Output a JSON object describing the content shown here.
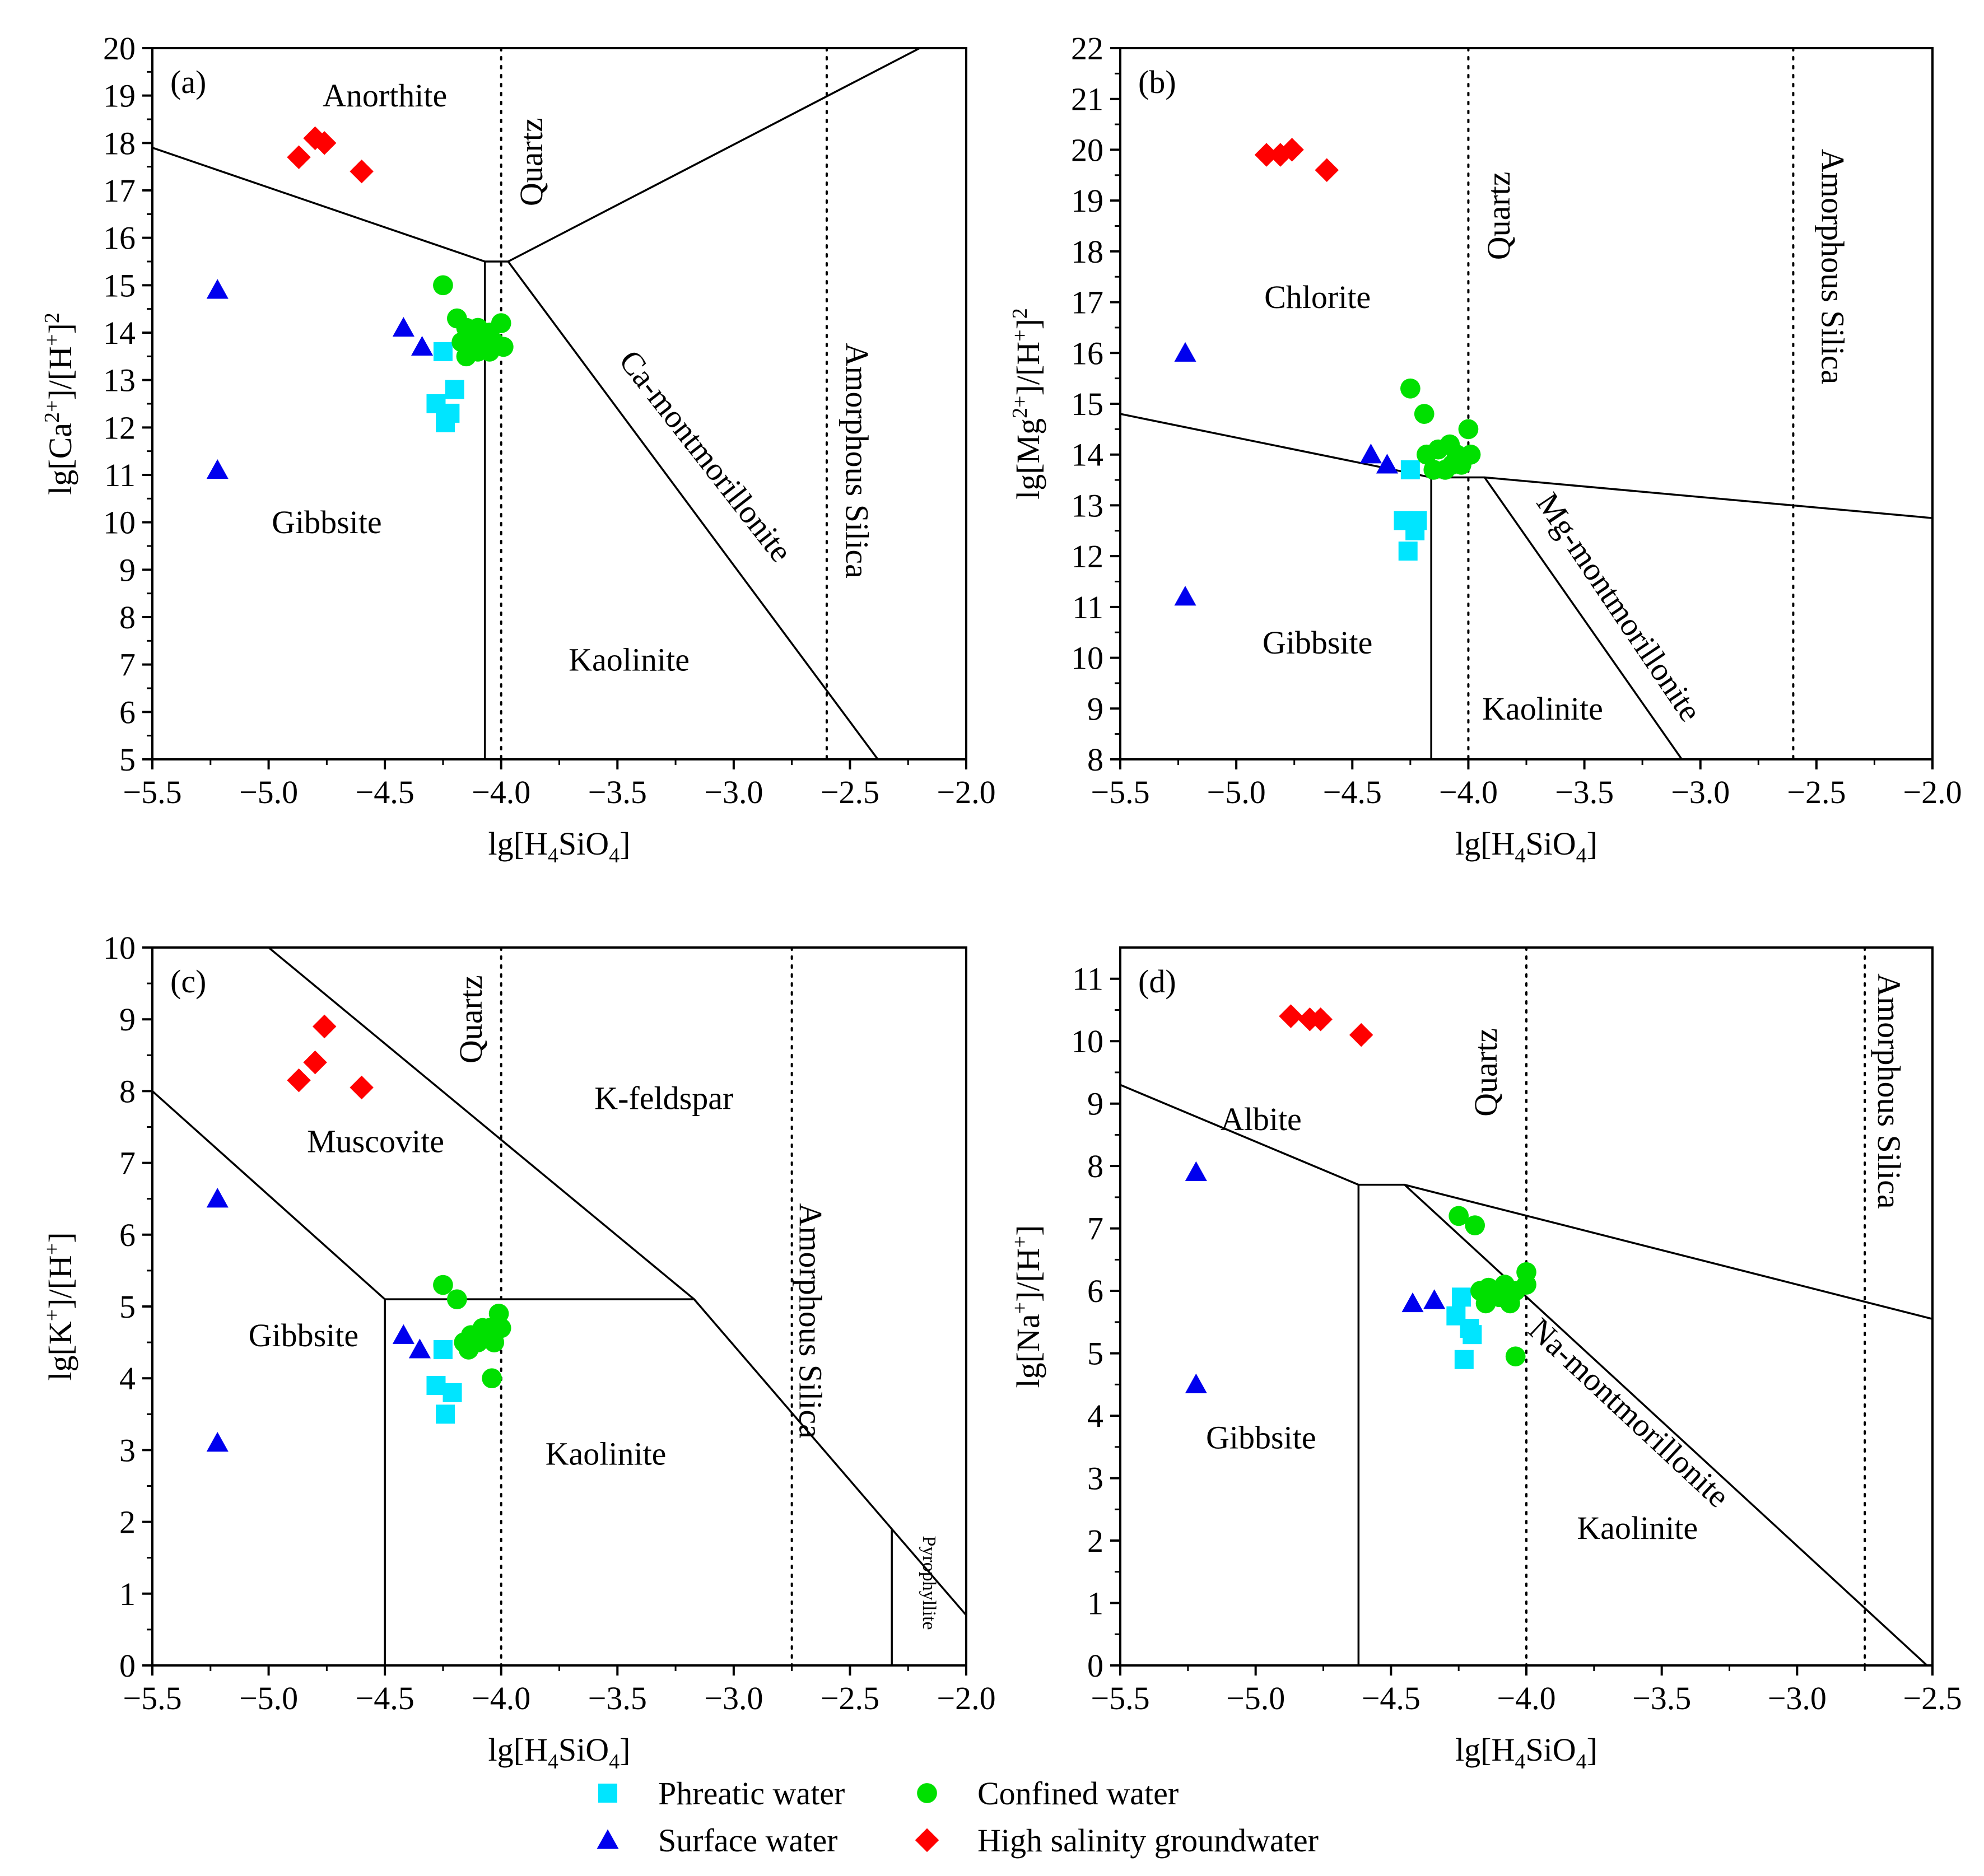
{
  "chart_data": [
    {
      "type": "scatter",
      "tag": "(a)",
      "xlabel": {
        "base": "lg[H",
        "sub1": "4",
        "mid": "SiO",
        "sub2": "4",
        "end": "]"
      },
      "ylabel": {
        "base": "lg[Ca",
        "sup1": "2+",
        "mid": "]/[H",
        "sup2": "+",
        "end": "]",
        "sup3": "2"
      },
      "xlim": [
        -5.5,
        -2.0
      ],
      "ylim": [
        5,
        20
      ],
      "xticks": [
        -5.5,
        -5.0,
        -4.5,
        -4.0,
        -3.5,
        -3.0,
        -2.5,
        -2.0
      ],
      "xtick_labels": [
        "−5.5",
        "−5.0",
        "−4.5",
        "−4.0",
        "−3.5",
        "−3.0",
        "−2.5",
        "−2.0"
      ],
      "yticks": [
        5,
        6,
        7,
        8,
        9,
        10,
        11,
        12,
        13,
        14,
        15,
        16,
        17,
        18,
        19,
        20
      ],
      "ytick_labels": [
        "5",
        "6",
        "7",
        "8",
        "9",
        "10",
        "11",
        "12",
        "13",
        "14",
        "15",
        "16",
        "17",
        "18",
        "19",
        "20"
      ],
      "boundaries": [
        [
          [
            -5.5,
            17.9
          ],
          [
            -4.07,
            15.5
          ],
          [
            -3.97,
            15.5
          ],
          [
            -2.2,
            20.0
          ]
        ],
        [
          [
            -4.07,
            5.0
          ],
          [
            -4.07,
            15.5
          ]
        ],
        [
          [
            -3.97,
            15.5
          ],
          [
            -2.38,
            5.0
          ]
        ]
      ],
      "dotted_lines": [
        -4.0,
        -2.6
      ],
      "regions": [
        {
          "text": "Anorthite",
          "x": -4.5,
          "y": 19.0,
          "rotate": 0
        },
        {
          "text": "Gibbsite",
          "x": -4.75,
          "y": 10.0,
          "rotate": 0
        },
        {
          "text": "Kaolinite",
          "x": -3.45,
          "y": 7.1,
          "rotate": 0
        },
        {
          "text": "Ca-montmorillonite",
          "x": -3.12,
          "y": 11.4,
          "rotate": 52
        },
        {
          "text": "Amorphous Silica",
          "x": -2.47,
          "y": 11.3,
          "rotate": 90
        },
        {
          "text": "Quartz",
          "x": -3.87,
          "y": 17.6,
          "rotate": -90
        }
      ],
      "series": [
        {
          "key": "phreatic",
          "points": [
            [
              -4.25,
              13.6
            ],
            [
              -4.2,
              12.8
            ],
            [
              -4.28,
              12.5
            ],
            [
              -4.22,
              12.3
            ],
            [
              -4.24,
              12.1
            ]
          ]
        },
        {
          "key": "confined",
          "points": [
            [
              -4.25,
              15.0
            ],
            [
              -4.19,
              14.3
            ],
            [
              -4.15,
              14.1
            ],
            [
              -4.1,
              14.1
            ],
            [
              -4.05,
              14.0
            ],
            [
              -4.0,
              14.2
            ],
            [
              -4.13,
              13.9
            ],
            [
              -4.17,
              13.8
            ],
            [
              -4.07,
              13.8
            ],
            [
              -4.03,
              13.8
            ],
            [
              -3.99,
              13.7
            ],
            [
              -4.1,
              13.6
            ],
            [
              -4.05,
              13.6
            ],
            [
              -4.15,
              13.5
            ]
          ]
        },
        {
          "key": "surface",
          "points": [
            [
              -5.22,
              14.9
            ],
            [
              -4.42,
              14.1
            ],
            [
              -4.34,
              13.7
            ],
            [
              -5.22,
              11.1
            ]
          ]
        },
        {
          "key": "high",
          "points": [
            [
              -4.87,
              17.7
            ],
            [
              -4.8,
              18.1
            ],
            [
              -4.76,
              18.0
            ],
            [
              -4.6,
              17.4
            ]
          ]
        }
      ]
    },
    {
      "type": "scatter",
      "tag": "(b)",
      "xlabel": {
        "base": "lg[H",
        "sub1": "4",
        "mid": "SiO",
        "sub2": "4",
        "end": "]"
      },
      "ylabel": {
        "base": "lg[Mg",
        "sup1": "2+",
        "mid": "]/[H",
        "sup2": "+",
        "end": "]",
        "sup3": "2"
      },
      "xlim": [
        -5.5,
        -2.0
      ],
      "ylim": [
        8,
        22
      ],
      "xticks": [
        -5.5,
        -5.0,
        -4.5,
        -4.0,
        -3.5,
        -3.0,
        -2.5,
        -2.0
      ],
      "xtick_labels": [
        "−5.5",
        "−5.0",
        "−4.5",
        "−4.0",
        "−3.5",
        "−3.0",
        "−2.5",
        "−2.0"
      ],
      "yticks": [
        8,
        9,
        10,
        11,
        12,
        13,
        14,
        15,
        16,
        17,
        18,
        19,
        20,
        21,
        22
      ],
      "ytick_labels": [
        "8",
        "9",
        "10",
        "11",
        "12",
        "13",
        "14",
        "15",
        "16",
        "17",
        "18",
        "19",
        "20",
        "21",
        "22"
      ],
      "boundaries": [
        [
          [
            -5.5,
            14.8
          ],
          [
            -4.16,
            13.55
          ],
          [
            -3.93,
            13.55
          ],
          [
            -2.0,
            12.75
          ]
        ],
        [
          [
            -4.16,
            8.0
          ],
          [
            -4.16,
            13.55
          ]
        ],
        [
          [
            -3.93,
            13.55
          ],
          [
            -3.08,
            8.0
          ]
        ]
      ],
      "dotted_lines": [
        -4.0,
        -2.6
      ],
      "regions": [
        {
          "text": "Chlorite",
          "x": -4.65,
          "y": 17.1,
          "rotate": 0
        },
        {
          "text": "Gibbsite",
          "x": -4.65,
          "y": 10.3,
          "rotate": 0
        },
        {
          "text": "Kaolinite",
          "x": -3.68,
          "y": 9.0,
          "rotate": 0
        },
        {
          "text": "Mg-montmorillonite",
          "x": -3.35,
          "y": 11.0,
          "rotate": 56
        },
        {
          "text": "Amorphous Silica",
          "x": -2.43,
          "y": 17.7,
          "rotate": 90
        },
        {
          "text": "Quartz",
          "x": -3.87,
          "y": 18.7,
          "rotate": -90
        }
      ],
      "series": [
        {
          "key": "phreatic",
          "points": [
            [
              -4.25,
              13.7
            ],
            [
              -4.28,
              12.7
            ],
            [
              -4.22,
              12.7
            ],
            [
              -4.23,
              12.5
            ],
            [
              -4.26,
              12.1
            ]
          ]
        },
        {
          "key": "confined",
          "points": [
            [
              -4.25,
              15.3
            ],
            [
              -4.19,
              14.8
            ],
            [
              -4.18,
              14.0
            ],
            [
              -4.13,
              14.1
            ],
            [
              -4.08,
              14.2
            ],
            [
              -4.05,
              14.0
            ],
            [
              -4.0,
              14.5
            ],
            [
              -4.15,
              13.7
            ],
            [
              -4.1,
              13.7
            ],
            [
              -4.03,
              13.8
            ],
            [
              -3.99,
              14.0
            ],
            [
              -4.07,
              13.8
            ]
          ]
        },
        {
          "key": "surface",
          "points": [
            [
              -5.22,
              16.0
            ],
            [
              -4.42,
              14.0
            ],
            [
              -4.35,
              13.8
            ],
            [
              -5.22,
              11.2
            ]
          ]
        },
        {
          "key": "high",
          "points": [
            [
              -4.87,
              19.9
            ],
            [
              -4.81,
              19.9
            ],
            [
              -4.76,
              20.0
            ],
            [
              -4.61,
              19.6
            ]
          ]
        }
      ]
    },
    {
      "type": "scatter",
      "tag": "(c)",
      "xlabel": {
        "base": "lg[H",
        "sub1": "4",
        "mid": "SiO",
        "sub2": "4",
        "end": "]"
      },
      "ylabel": {
        "base": "lg[K",
        "sup1": "+",
        "mid": "]/[H",
        "sup2": "+",
        "end": "]",
        "sup3": ""
      },
      "xlim": [
        -5.5,
        -2.0
      ],
      "ylim": [
        0,
        10
      ],
      "xticks": [
        -5.5,
        -5.0,
        -4.5,
        -4.0,
        -3.5,
        -3.0,
        -2.5,
        -2.0
      ],
      "xtick_labels": [
        "−5.5",
        "−5.0",
        "−4.5",
        "−4.0",
        "−3.5",
        "−3.0",
        "−2.5",
        "−2.0"
      ],
      "yticks": [
        0,
        1,
        2,
        3,
        4,
        5,
        6,
        7,
        8,
        9,
        10
      ],
      "ytick_labels": [
        "0",
        "1",
        "2",
        "3",
        "4",
        "5",
        "6",
        "7",
        "8",
        "9",
        "10"
      ],
      "boundaries": [
        [
          [
            -5.5,
            8.0
          ],
          [
            -4.5,
            5.1
          ],
          [
            -3.17,
            5.1
          ]
        ],
        [
          [
            -4.5,
            0.0
          ],
          [
            -4.5,
            5.1
          ]
        ],
        [
          [
            -5.0,
            10.0
          ],
          [
            -3.17,
            5.1
          ],
          [
            -2.32,
            1.9
          ],
          [
            -2.0,
            0.7
          ]
        ],
        [
          [
            -2.32,
            0.0
          ],
          [
            -2.32,
            1.9
          ]
        ]
      ],
      "dotted_lines": [
        -4.0,
        -2.75
      ],
      "regions": [
        {
          "text": "K-feldspar",
          "x": -3.3,
          "y": 7.9,
          "rotate": 0
        },
        {
          "text": "Muscovite",
          "x": -4.54,
          "y": 7.3,
          "rotate": 0
        },
        {
          "text": "Gibbsite",
          "x": -4.85,
          "y": 4.6,
          "rotate": 0
        },
        {
          "text": "Kaolinite",
          "x": -3.55,
          "y": 2.95,
          "rotate": 0
        },
        {
          "text": "Amorphous Silica",
          "x": -2.67,
          "y": 4.8,
          "rotate": 90
        },
        {
          "text": "Quartz",
          "x": -4.13,
          "y": 9.0,
          "rotate": -90
        },
        {
          "text": "Pyrophyllite",
          "x": -2.16,
          "y": 1.15,
          "rotate": 90
        }
      ],
      "series": [
        {
          "key": "phreatic",
          "points": [
            [
              -4.25,
              4.4
            ],
            [
              -4.28,
              3.9
            ],
            [
              -4.21,
              3.8
            ],
            [
              -4.24,
              3.5
            ]
          ]
        },
        {
          "key": "confined",
          "points": [
            [
              -4.25,
              5.3
            ],
            [
              -4.19,
              5.1
            ],
            [
              -4.16,
              4.5
            ],
            [
              -4.13,
              4.6
            ],
            [
              -4.08,
              4.7
            ],
            [
              -4.05,
              4.7
            ],
            [
              -4.01,
              4.9
            ],
            [
              -4.14,
              4.4
            ],
            [
              -4.1,
              4.5
            ],
            [
              -4.03,
              4.5
            ],
            [
              -4.0,
              4.7
            ],
            [
              -4.04,
              4.0
            ]
          ]
        },
        {
          "key": "surface",
          "points": [
            [
              -5.22,
              6.5
            ],
            [
              -4.42,
              4.6
            ],
            [
              -4.35,
              4.4
            ],
            [
              -5.22,
              3.1
            ]
          ]
        },
        {
          "key": "high",
          "points": [
            [
              -4.87,
              8.15
            ],
            [
              -4.8,
              8.4
            ],
            [
              -4.76,
              8.9
            ],
            [
              -4.6,
              8.05
            ]
          ]
        }
      ]
    },
    {
      "type": "scatter",
      "tag": "(d)",
      "xlabel": {
        "base": "lg[H",
        "sub1": "4",
        "mid": "SiO",
        "sub2": "4",
        "end": "]"
      },
      "ylabel": {
        "base": "lg[Na",
        "sup1": "+",
        "mid": "]/[H",
        "sup2": "+",
        "end": "]",
        "sup3": ""
      },
      "xlim": [
        -5.5,
        -2.5
      ],
      "ylim": [
        0,
        11.5
      ],
      "xticks": [
        -5.5,
        -5.0,
        -4.5,
        -4.0,
        -3.5,
        -3.0,
        -2.5
      ],
      "xtick_labels": [
        "−5.5",
        "−5.0",
        "−4.5",
        "−4.0",
        "−3.5",
        "−3.0",
        "−2.5"
      ],
      "yticks": [
        0,
        1,
        2,
        3,
        4,
        5,
        6,
        7,
        8,
        9,
        10,
        11
      ],
      "ytick_labels": [
        "0",
        "1",
        "2",
        "3",
        "4",
        "5",
        "6",
        "7",
        "8",
        "9",
        "10",
        "11"
      ],
      "boundaries": [
        [
          [
            -5.5,
            9.3
          ],
          [
            -4.62,
            7.7
          ],
          [
            -4.45,
            7.7
          ],
          [
            -2.5,
            5.55
          ]
        ],
        [
          [
            -4.62,
            0.0
          ],
          [
            -4.62,
            7.7
          ]
        ],
        [
          [
            -4.45,
            7.7
          ],
          [
            -2.52,
            0.0
          ]
        ]
      ],
      "dotted_lines": [
        -4.0,
        -2.75
      ],
      "regions": [
        {
          "text": "Albite",
          "x": -4.98,
          "y": 8.75,
          "rotate": 0
        },
        {
          "text": "Gibbsite",
          "x": -4.98,
          "y": 3.65,
          "rotate": 0
        },
        {
          "text": "Kaolinite",
          "x": -3.59,
          "y": 2.2,
          "rotate": 0
        },
        {
          "text": "Na-montmorillonite",
          "x": -3.62,
          "y": 4.05,
          "rotate": 43
        },
        {
          "text": "Amorphous Silica",
          "x": -2.66,
          "y": 9.2,
          "rotate": 90
        },
        {
          "text": "Quartz",
          "x": -4.15,
          "y": 9.5,
          "rotate": -90
        }
      ],
      "series": [
        {
          "key": "phreatic",
          "points": [
            [
              -4.24,
              5.9
            ],
            [
              -4.26,
              5.6
            ],
            [
              -4.21,
              5.4
            ],
            [
              -4.2,
              5.3
            ],
            [
              -4.23,
              4.9
            ]
          ]
        },
        {
          "key": "confined",
          "points": [
            [
              -4.25,
              7.2
            ],
            [
              -4.19,
              7.05
            ],
            [
              -4.17,
              6.0
            ],
            [
              -4.14,
              6.05
            ],
            [
              -4.1,
              5.9
            ],
            [
              -4.08,
              6.1
            ],
            [
              -4.04,
              6.0
            ],
            [
              -4.0,
              6.3
            ],
            [
              -4.15,
              5.8
            ],
            [
              -4.06,
              5.8
            ],
            [
              -4.0,
              6.1
            ],
            [
              -4.04,
              4.95
            ]
          ]
        },
        {
          "key": "surface",
          "points": [
            [
              -5.22,
              7.9
            ],
            [
              -4.42,
              5.8
            ],
            [
              -4.34,
              5.85
            ],
            [
              -5.22,
              4.5
            ]
          ]
        },
        {
          "key": "high",
          "points": [
            [
              -4.87,
              10.4
            ],
            [
              -4.8,
              10.35
            ],
            [
              -4.76,
              10.35
            ],
            [
              -4.61,
              10.1
            ]
          ]
        }
      ]
    }
  ],
  "legend": [
    {
      "key": "phreatic",
      "label": "Phreatic water",
      "marker": "square",
      "color": "#00e5ff"
    },
    {
      "key": "confined",
      "label": "Confined water",
      "marker": "circle",
      "color": "#00e000"
    },
    {
      "key": "surface",
      "label": "Surface water",
      "marker": "triangle",
      "color": "#0000ee"
    },
    {
      "key": "high",
      "label": "High salinity groundwater",
      "marker": "diamond",
      "color": "#ff0000"
    }
  ]
}
